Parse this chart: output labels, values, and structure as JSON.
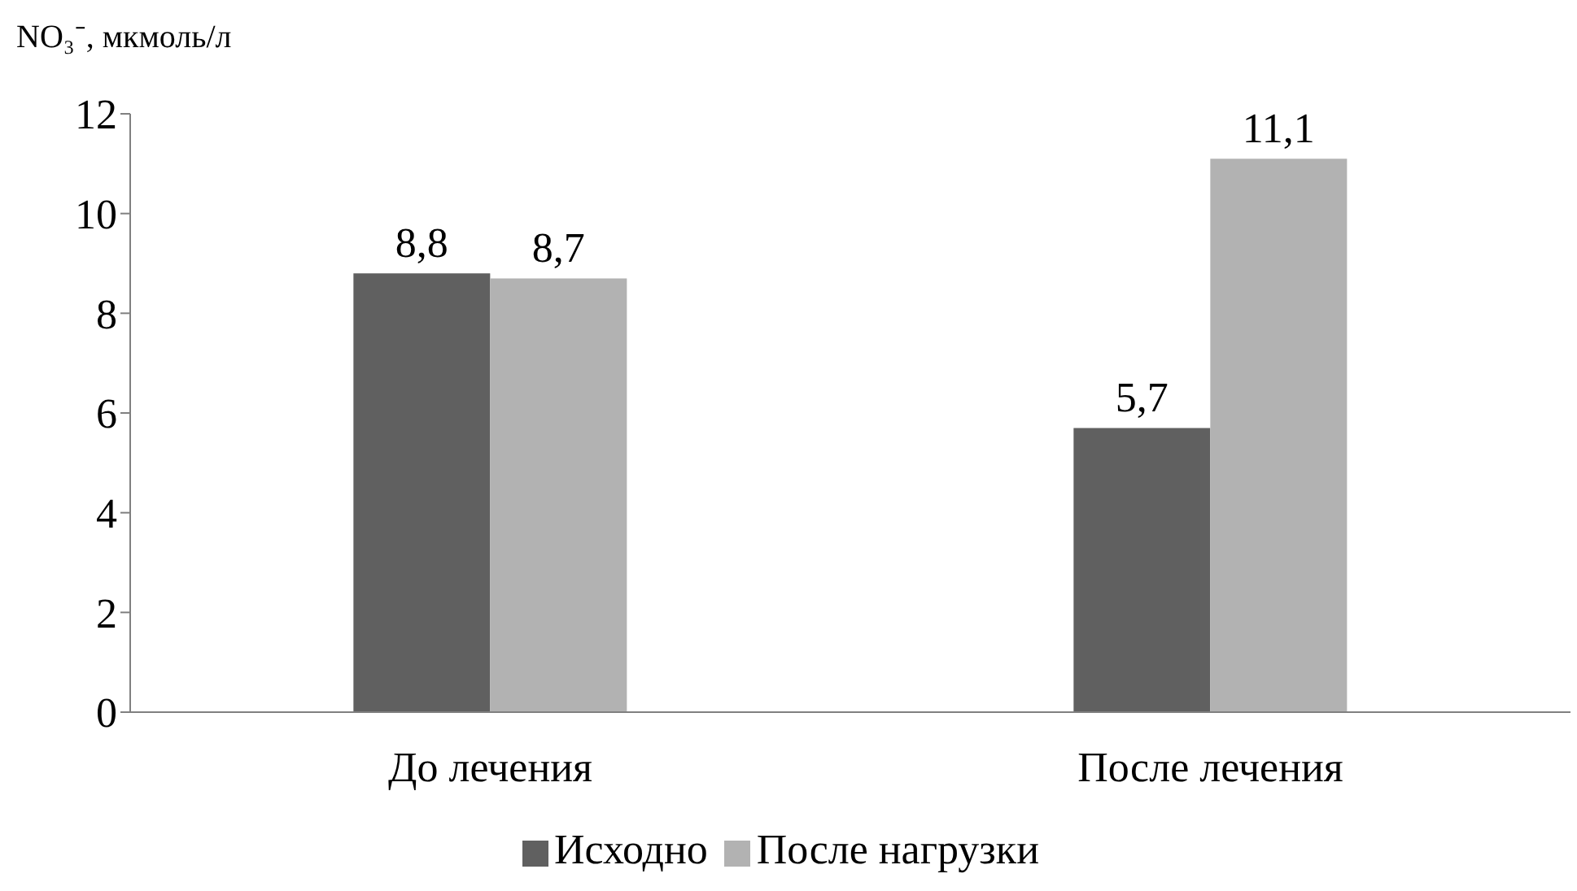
{
  "chart_data": {
    "type": "bar",
    "ylabel": "NO₃⁻, мкмоль/л",
    "categories": [
      "До лечения",
      "После лечения"
    ],
    "series": [
      {
        "name": "Исходно",
        "color": "#606060",
        "values": [
          8.8,
          5.7
        ],
        "value_labels": [
          "8,8",
          "5,7"
        ]
      },
      {
        "name": "После нагрузки",
        "color": "#b2b2b2",
        "values": [
          8.7,
          11.1
        ],
        "value_labels": [
          "8,7",
          "11,1"
        ]
      }
    ],
    "ylim": [
      0,
      12
    ],
    "yticks": [
      0,
      2,
      4,
      6,
      8,
      10,
      12
    ],
    "grid": false,
    "legend": "bottom"
  }
}
